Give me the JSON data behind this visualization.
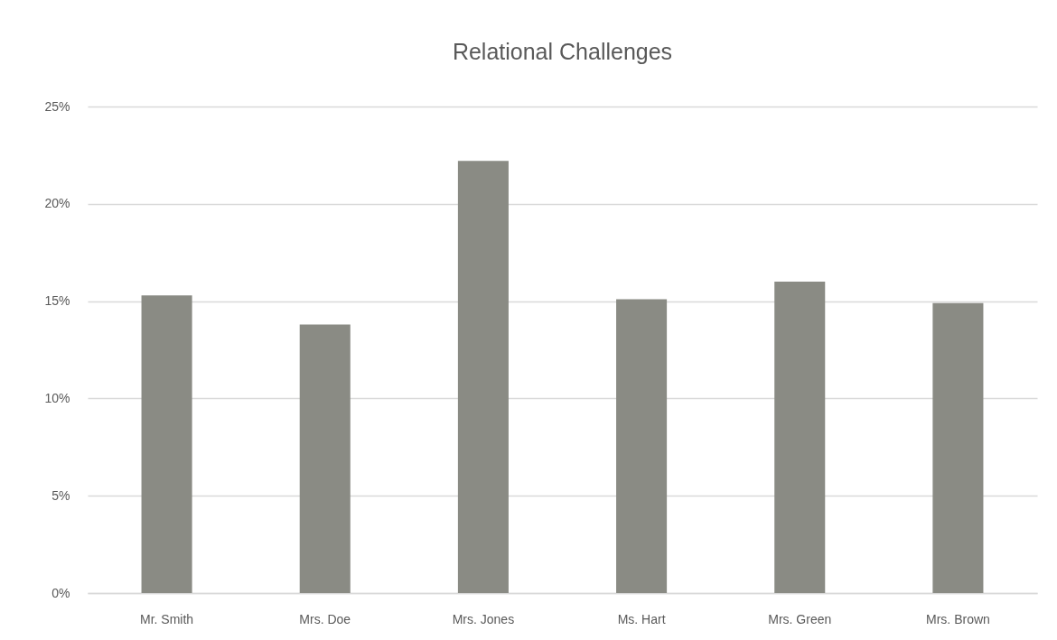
{
  "chart_data": {
    "type": "bar",
    "title": "Relational Challenges",
    "categories": [
      "Mr. Smith",
      "Mrs. Doe",
      "Mrs. Jones",
      "Ms. Hart",
      "Mrs. Green",
      "Mrs. Brown"
    ],
    "values": [
      15.3,
      13.8,
      22.2,
      15.1,
      16.0,
      14.9
    ],
    "color": "#8a8b84",
    "ylim": [
      0,
      25
    ],
    "yticks": [
      {
        "value": 0,
        "label": "0%"
      },
      {
        "value": 5,
        "label": "5%"
      },
      {
        "value": 10,
        "label": "10%"
      },
      {
        "value": 15,
        "label": "15%"
      },
      {
        "value": 20,
        "label": "20%"
      },
      {
        "value": 25,
        "label": "25%"
      }
    ],
    "grid": "y"
  }
}
